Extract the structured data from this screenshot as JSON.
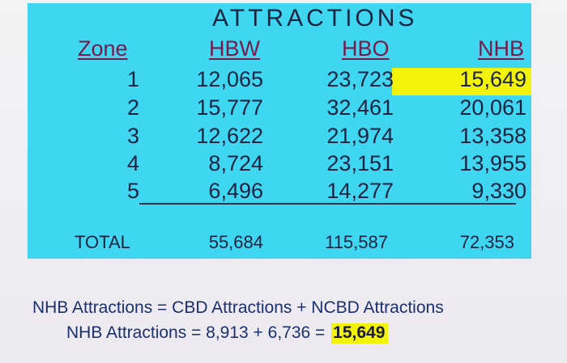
{
  "table": {
    "title": "ATTRACTIONS",
    "headers": {
      "zone": "Zone",
      "hbw": "HBW",
      "hbo": "HBO",
      "nhb": "NHB"
    },
    "rows": [
      {
        "zone": "1",
        "hbw": "12,065",
        "hbo": "23,723",
        "nhb": "15,649"
      },
      {
        "zone": "2",
        "hbw": "15,777",
        "hbo": "32,461",
        "nhb": "20,061"
      },
      {
        "zone": "3",
        "hbw": "12,622",
        "hbo": "21,974",
        "nhb": "13,358"
      },
      {
        "zone": "4",
        "hbw": "8,724",
        "hbo": "23,151",
        "nhb": "13,955"
      },
      {
        "zone": "5",
        "hbw": "6,496",
        "hbo": "14,277",
        "nhb": "9,330"
      }
    ],
    "totals": {
      "label": "TOTAL",
      "hbw": "55,684",
      "hbo": "115,587",
      "nhb": "72,353"
    },
    "colors": {
      "panel": "#3fd6f2",
      "highlight": "#f2f20a",
      "header_text": "#7a1a4a"
    }
  },
  "equations": {
    "line1": "NHB Attractions = CBD Attractions + NCBD Attractions",
    "line2_prefix": "NHB Attractions = 8,913 + 6,736 =",
    "line2_result": "15,649"
  }
}
